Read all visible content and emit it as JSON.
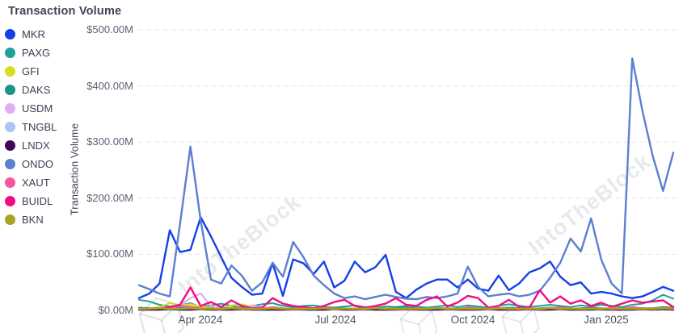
{
  "title": "Transaction Volume",
  "legend": {
    "items": [
      {
        "label": "MKR",
        "color": "#1540e9"
      },
      {
        "label": "PAXG",
        "color": "#21a096"
      },
      {
        "label": "GFI",
        "color": "#d9dd20"
      },
      {
        "label": "DAKS",
        "color": "#1a9488"
      },
      {
        "label": "USDM",
        "color": "#ddaef3"
      },
      {
        "label": "TNGBL",
        "color": "#a9c6f5"
      },
      {
        "label": "LNDX",
        "color": "#41075c"
      },
      {
        "label": "ONDO",
        "color": "#5b7fd1"
      },
      {
        "label": "XAUT",
        "color": "#f6569e"
      },
      {
        "label": "BUIDL",
        "color": "#f20c83"
      },
      {
        "label": "BKN",
        "color": "#a8a422"
      }
    ]
  },
  "y_axis": {
    "label": "Transaction Volume",
    "ticks": [
      "$500.00M",
      "$400.00M",
      "$300.00M",
      "$200.00M",
      "$100.00M",
      "$0.00M"
    ]
  },
  "x_axis": {
    "ticks": [
      "Apr 2024",
      "Jul 2024",
      "Oct 2024",
      "Jan 2025"
    ]
  },
  "watermark": {
    "text": "IntoTheBlock"
  },
  "chart_data": {
    "type": "line",
    "title": "Transaction Volume",
    "ylabel": "Transaction Volume",
    "unit": "$M (USD millions)",
    "ylim": [
      0,
      500
    ],
    "y_tick_step": 100,
    "grid": "horizontal-dashed",
    "legend_position": "left",
    "x_unit": "week",
    "x_range": [
      "Feb 2024",
      "Feb 2025"
    ],
    "x_tick_labels": [
      "Apr 2024",
      "Jul 2024",
      "Oct 2024",
      "Jan 2025"
    ],
    "series": [
      {
        "name": "MKR",
        "color": "#1540e9",
        "width": 2.4,
        "values": [
          22,
          30,
          48,
          143,
          104,
          108,
          166,
          132,
          95,
          58,
          42,
          28,
          30,
          84,
          26,
          91,
          84,
          65,
          87,
          41,
          53,
          87,
          68,
          77,
          99,
          33,
          22,
          37,
          48,
          55,
          55,
          41,
          55,
          39,
          35,
          62,
          36,
          48,
          68,
          75,
          87,
          60,
          45,
          50,
          30,
          33,
          30,
          25,
          22,
          25,
          33,
          42,
          35
        ]
      },
      {
        "name": "PAXG",
        "color": "#21a096",
        "width": 2,
        "values": [
          19,
          16,
          10,
          7,
          9,
          13,
          6,
          9,
          12,
          8,
          5,
          8,
          11,
          13,
          8,
          6,
          8,
          9,
          6,
          5,
          7,
          9,
          6,
          5,
          7,
          6,
          8,
          7,
          5,
          7,
          9,
          6,
          9,
          7,
          5,
          8,
          11,
          8,
          6,
          8,
          10,
          8,
          6,
          9,
          7,
          10,
          8,
          6,
          10,
          12,
          18,
          28,
          21
        ]
      },
      {
        "name": "GFI",
        "color": "#d9dd20",
        "width": 2,
        "values": [
          3,
          4,
          6,
          13,
          9,
          11,
          7,
          5,
          3,
          9,
          11,
          6,
          4,
          3,
          2,
          3,
          4,
          3,
          2,
          3,
          3,
          2,
          3,
          3,
          2,
          3,
          3,
          2,
          2,
          3,
          3,
          2,
          3,
          3,
          2,
          2,
          3,
          2,
          2,
          3,
          3,
          2,
          2,
          3,
          2,
          2,
          3,
          2,
          3,
          3,
          4,
          5,
          4
        ]
      },
      {
        "name": "DAKS",
        "color": "#1a9488",
        "width": 2,
        "values": [
          5,
          4,
          3,
          4,
          5,
          4,
          3,
          4,
          5,
          4,
          3,
          4,
          5,
          4,
          3,
          4,
          4,
          3,
          4,
          5,
          4,
          3,
          4,
          4,
          3,
          4,
          5,
          4,
          3,
          4,
          4,
          3,
          5,
          4,
          3,
          4,
          5,
          4,
          3,
          4,
          5,
          4,
          3,
          4,
          5,
          4,
          3,
          4,
          5,
          4,
          4,
          6,
          5
        ]
      },
      {
        "name": "USDM",
        "color": "#ddaef3",
        "width": 2.2,
        "values": [
          1,
          1,
          2,
          4,
          9,
          22,
          30,
          8,
          3,
          2,
          1,
          9,
          6,
          2,
          1,
          1,
          2,
          1,
          1,
          2,
          2,
          1,
          1,
          2,
          1,
          2,
          1,
          1,
          2,
          1,
          1,
          2,
          4,
          2,
          1,
          1,
          2,
          1,
          1,
          1,
          2,
          2,
          1,
          1,
          2,
          1,
          1,
          1,
          2,
          2,
          2,
          3,
          2
        ]
      },
      {
        "name": "TNGBL",
        "color": "#a9c6f5",
        "width": 2,
        "values": [
          2,
          2,
          3,
          2,
          2,
          3,
          4,
          2,
          2,
          3,
          2,
          2,
          3,
          2,
          2,
          2,
          3,
          2,
          2,
          2,
          3,
          2,
          2,
          3,
          2,
          2,
          2,
          3,
          2,
          2,
          3,
          2,
          2,
          2,
          3,
          2,
          2,
          3,
          2,
          2,
          2,
          3,
          2,
          2,
          3,
          2,
          2,
          2,
          3,
          2,
          2,
          3,
          2
        ]
      },
      {
        "name": "LNDX",
        "color": "#41075c",
        "width": 2,
        "values": [
          1,
          1,
          1,
          2,
          1,
          1,
          2,
          1,
          1,
          1,
          2,
          1,
          1,
          1,
          1,
          2,
          1,
          1,
          1,
          2,
          1,
          1,
          2,
          1,
          1,
          1,
          2,
          1,
          1,
          1,
          2,
          1,
          1,
          1,
          2,
          1,
          1,
          1,
          2,
          1,
          1,
          2,
          1,
          1,
          1,
          2,
          1,
          1,
          1,
          2,
          1,
          2,
          1
        ]
      },
      {
        "name": "ONDO",
        "color": "#5b7fd1",
        "width": 2.4,
        "values": [
          45,
          38,
          30,
          25,
          155,
          292,
          160,
          55,
          48,
          80,
          62,
          35,
          50,
          85,
          60,
          122,
          95,
          62,
          45,
          30,
          22,
          25,
          20,
          24,
          28,
          24,
          21,
          20,
          24,
          22,
          25,
          30,
          78,
          42,
          25,
          28,
          30,
          25,
          28,
          35,
          58,
          85,
          128,
          105,
          164,
          90,
          48,
          30,
          449,
          355,
          275,
          213,
          281
        ]
      },
      {
        "name": "XAUT",
        "color": "#f6569e",
        "width": 2,
        "values": [
          2,
          3,
          4,
          6,
          8,
          7,
          4,
          3,
          2,
          4,
          3,
          2,
          3,
          6,
          4,
          3,
          2,
          3,
          4,
          2,
          3,
          2,
          3,
          4,
          3,
          2,
          3,
          2,
          3,
          4,
          3,
          2,
          6,
          4,
          2,
          3,
          4,
          2,
          3,
          2,
          4,
          6,
          3,
          2,
          3,
          4,
          2,
          3,
          6,
          4,
          2,
          4,
          3
        ]
      },
      {
        "name": "BUIDL",
        "color": "#f20c83",
        "width": 2.4,
        "values": [
          3,
          3,
          4,
          6,
          10,
          41,
          8,
          15,
          6,
          18,
          8,
          4,
          5,
          22,
          12,
          8,
          6,
          4,
          8,
          15,
          19,
          8,
          5,
          8,
          12,
          22,
          10,
          8,
          19,
          25,
          7,
          14,
          26,
          22,
          5,
          8,
          19,
          6,
          5,
          36,
          14,
          25,
          12,
          18,
          8,
          14,
          6,
          12,
          18,
          14,
          16,
          18,
          6
        ]
      },
      {
        "name": "BKN",
        "color": "#a8a422",
        "width": 2.6,
        "values": [
          3,
          3,
          4,
          3,
          3,
          4,
          3,
          3,
          3,
          4,
          3,
          3,
          3,
          4,
          3,
          3,
          3,
          3,
          4,
          3,
          3,
          3,
          3,
          4,
          3,
          3,
          3,
          3,
          3,
          4,
          3,
          3,
          3,
          3,
          3,
          4,
          3,
          3,
          3,
          3,
          4,
          3,
          3,
          3,
          3,
          3,
          4,
          3,
          3,
          3,
          3,
          4,
          3
        ]
      }
    ]
  }
}
